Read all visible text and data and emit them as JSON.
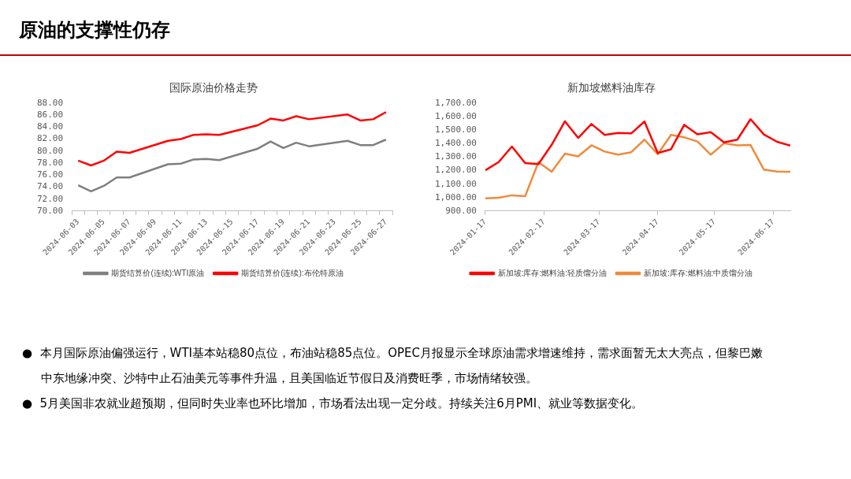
{
  "chart_data": [
    {
      "type": "other",
      "title": "原油的支撑性仍存"
    },
    {
      "type": "line",
      "title": "国际原油价格走势",
      "categories": [
        "2024-06-03",
        null,
        "2024-06-05",
        null,
        "2024-06-07",
        null,
        "2024-06-09",
        null,
        "2024-06-11",
        null,
        "2024-06-13",
        null,
        "2024-06-15",
        null,
        "2024-06-17",
        null,
        "2024-06-19",
        null,
        "2024-06-21",
        null,
        "2024-06-23",
        null,
        "2024-06-25",
        null,
        "2024-06-27"
      ],
      "series": [
        {
          "name": "期货结算价(连续):WTI原油",
          "color": "#7f7f7f",
          "values": [
            74.3,
            73.3,
            74.2,
            75.6,
            75.6,
            null,
            null,
            77.8,
            77.9,
            78.6,
            78.7,
            78.5,
            null,
            null,
            80.4,
            81.6,
            80.5,
            81.4,
            80.8,
            null,
            null,
            81.7,
            81.0,
            81.0,
            81.9
          ]
        },
        {
          "name": "期货结算价(连续):布伦特原油",
          "color": "#ff0000",
          "values": [
            78.4,
            77.6,
            78.4,
            79.9,
            79.7,
            null,
            null,
            81.7,
            82.0,
            82.7,
            82.8,
            82.7,
            null,
            null,
            84.3,
            85.4,
            85.1,
            85.8,
            85.3,
            null,
            null,
            86.1,
            85.1,
            85.3,
            86.5
          ]
        }
      ],
      "ylim": [
        70,
        88
      ],
      "yticks": [
        {
          "value": 70,
          "label": "70.00"
        },
        {
          "value": 72,
          "label": "72.00"
        },
        {
          "value": 74,
          "label": "74.00"
        },
        {
          "value": 76,
          "label": "76.00"
        },
        {
          "value": 78,
          "label": "78.00"
        },
        {
          "value": 80,
          "label": "80.00"
        },
        {
          "value": 82,
          "label": "82.00"
        },
        {
          "value": 84,
          "label": "84.00"
        },
        {
          "value": 86,
          "label": "86.00"
        },
        {
          "value": 88,
          "label": "88.00"
        }
      ],
      "legend": "bottom"
    },
    {
      "type": "line",
      "title": "新加坡燃料油库存",
      "x": [
        "2024-01-17",
        "2024-01-24",
        "2024-01-31",
        "2024-02-07",
        "2024-02-14",
        "2024-02-21",
        "2024-02-28",
        "2024-03-06",
        "2024-03-13",
        "2024-03-20",
        "2024-03-27",
        "2024-04-03",
        "2024-04-10",
        "2024-04-17",
        "2024-04-24",
        "2024-05-01",
        "2024-05-08",
        "2024-05-15",
        "2024-05-22",
        "2024-05-29",
        "2024-06-05",
        "2024-06-12",
        "2024-06-19",
        "2024-06-26"
      ],
      "series": [
        {
          "name": "新加坡:库存:燃料油:轻质馏分油",
          "color": "#ff0000",
          "values": [
            1202,
            1263,
            1378,
            1255,
            1248,
            1391,
            1565,
            1442,
            1545,
            1464,
            1479,
            1475,
            1563,
            1330,
            1358,
            1539,
            1468,
            1484,
            1409,
            1429,
            1581,
            1468,
            1413,
            1385
          ]
        },
        {
          "name": "新加坡:库存:燃料油:中质馏分油",
          "color": "#f08a3c",
          "values": [
            995,
            999,
            1017,
            1010,
            1263,
            1191,
            1325,
            1305,
            1387,
            1341,
            1318,
            1336,
            1429,
            1321,
            1464,
            1446,
            1415,
            1318,
            1402,
            1387,
            1389,
            1208,
            1193,
            1191
          ]
        }
      ],
      "xlim": [
        "2024-01-17",
        "2024-06-26"
      ],
      "xticks": [
        "2024-01-17",
        "2024-02-17",
        "2024-03-17",
        "2024-04-17",
        "2024-05-17",
        "2024-06-17"
      ],
      "ylim": [
        900,
        1700
      ],
      "yticks": [
        {
          "value": 900,
          "label": "900.00"
        },
        {
          "value": 1000,
          "label": "1,000.00"
        },
        {
          "value": 1100,
          "label": "1,100.00"
        },
        {
          "value": 1200,
          "label": "1,200.00"
        },
        {
          "value": 1300,
          "label": "1,300.00"
        },
        {
          "value": 1400,
          "label": "1,400.00"
        },
        {
          "value": 1500,
          "label": "1,500.00"
        },
        {
          "value": 1600,
          "label": "1,600.00"
        },
        {
          "value": 1700,
          "label": "1,700.00"
        }
      ],
      "legend": "bottom"
    },
    {
      "type": "other",
      "annotations": [
        "●  本月国际原油偏强运行，WTI基本站稳80点位，布油站稳85点位。OPEC月报显示全球原油需求增速维持，需求面暂无太大亮点，但黎巴嫩中东地缘冲突、沙特中止石油美元等事件升温，且美国临近节假日及消费旺季，市场情绪较强。",
        "●  5月美国非农就业超预期，但同时失业率也环比增加，市场看法出现一定分歧。持续关注6月PMI、就业等数据变化。"
      ]
    }
  ]
}
